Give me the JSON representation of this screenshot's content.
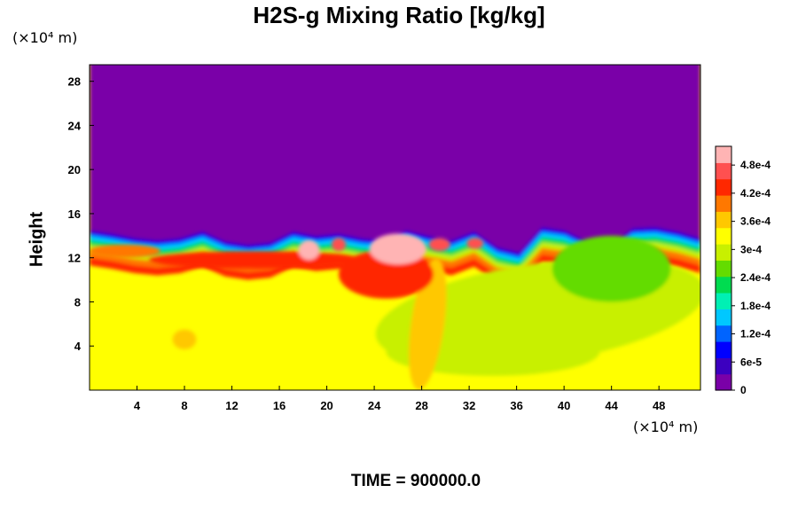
{
  "chart_data": {
    "type": "heatmap",
    "title": "H2S-g Mixing Ratio [kg/kg]",
    "ylabel": "Height",
    "x_unit": "(×10⁴ m)",
    "y_unit": "(×10⁴ m)",
    "xlim": [
      0,
      51.5
    ],
    "ylim": [
      0,
      29.5
    ],
    "x_ticks": [
      4,
      8,
      12,
      16,
      20,
      24,
      28,
      32,
      36,
      40,
      44,
      48
    ],
    "x_tick_labels": [
      "4",
      "8",
      "12",
      "16",
      "20",
      "24",
      "28",
      "32",
      "36",
      "40",
      "44",
      "48"
    ],
    "y_ticks": [
      4,
      8,
      12,
      16,
      20,
      24,
      28
    ],
    "y_tick_labels": [
      "4",
      "8",
      "12",
      "16",
      "20",
      "24",
      "28"
    ],
    "colorbar": {
      "min": 0,
      "max": 0.00052,
      "tick_values": [
        0,
        6e-05,
        0.00012,
        0.00018,
        0.00024,
        0.0003,
        0.00036,
        0.00042,
        0.00048
      ],
      "tick_labels": [
        "0",
        "6e-5",
        "1.2e-4",
        "1.8e-4",
        "2.4e-4",
        "3e-4",
        "3.6e-4",
        "4.2e-4",
        "4.8e-4"
      ],
      "colors": [
        "#7a00a8",
        "#3c00c0",
        "#0000ff",
        "#0064ff",
        "#00c8ff",
        "#00f0b4",
        "#00dc50",
        "#64dc00",
        "#c8f000",
        "#ffff00",
        "#ffc800",
        "#ff7800",
        "#ff2800",
        "#ff5050",
        "#ffb4b4"
      ]
    },
    "fields": {
      "upper_layer_value": 0.0,
      "lower_layer_value": 0.00034,
      "interface_height": [
        14.5,
        14.2,
        13.8,
        13.6,
        13.8,
        14.4,
        13.5,
        13.2,
        13.4,
        14.4,
        14.0,
        14.2,
        13.8,
        13.6,
        14.5,
        14.0,
        13.6,
        14.4,
        13.0,
        12.5,
        14.8,
        14.5,
        13.5,
        13.0,
        14.7,
        14.8,
        14.4,
        13.8
      ]
    },
    "annotation": "TIME = 900000.0"
  }
}
